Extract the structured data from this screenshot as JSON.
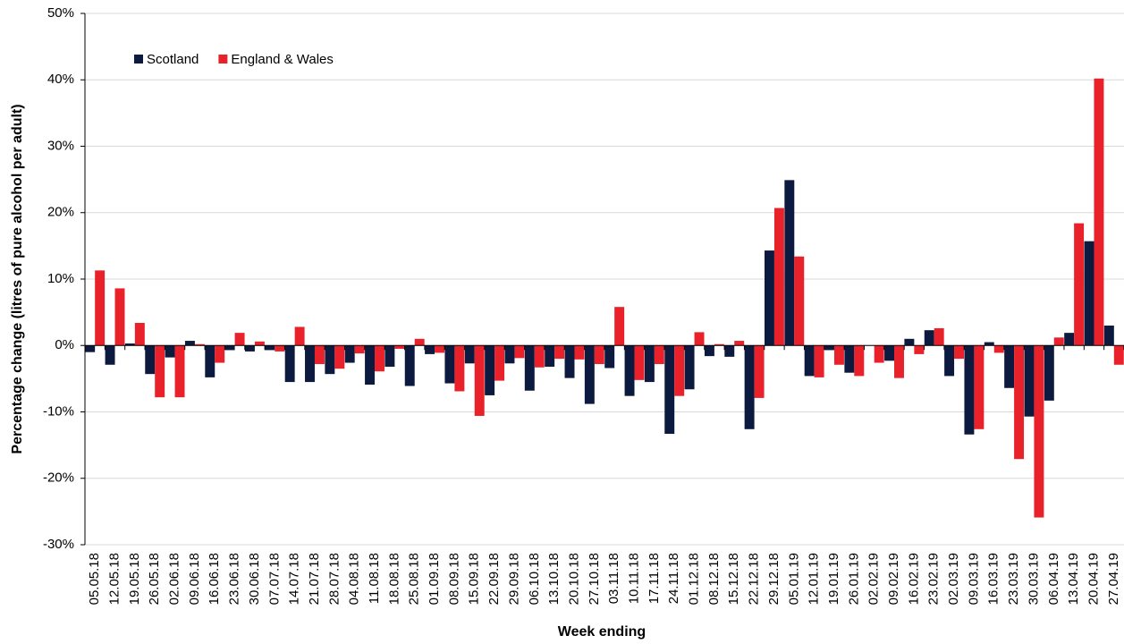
{
  "chart_data": {
    "type": "bar",
    "categories": [
      "05.05.18",
      "12.05.18",
      "19.05.18",
      "26.05.18",
      "02.06.18",
      "09.06.18",
      "16.06.18",
      "23.06.18",
      "30.06.18",
      "07.07.18",
      "14.07.18",
      "21.07.18",
      "28.07.18",
      "04.08.18",
      "11.08.18",
      "18.08.18",
      "25.08.18",
      "01.09.18",
      "08.09.18",
      "15.09.18",
      "22.09.18",
      "29.09.18",
      "06.10.18",
      "13.10.18",
      "20.10.18",
      "27.10.18",
      "03.11.18",
      "10.11.18",
      "17.11.18",
      "24.11.18",
      "01.12.18",
      "08.12.18",
      "15.12.18",
      "22.12.18",
      "29.12.18",
      "05.01.19",
      "12.01.19",
      "19.01.19",
      "26.01.19",
      "02.02.19",
      "09.02.19",
      "16.02.19",
      "23.02.19",
      "02.03.19",
      "09.03.19",
      "16.03.19",
      "23.03.19",
      "30.03.19",
      "06.04.19",
      "13.04.19",
      "20.04.19",
      "27.04.19"
    ],
    "series": [
      {
        "name": "Scotland",
        "color": "#0d1a3f",
        "values": [
          -1,
          -2.9,
          0.3,
          -4.3,
          -1.8,
          0.7,
          -4.8,
          -0.7,
          -0.9,
          -0.7,
          -5.5,
          -5.5,
          -4.3,
          -2.6,
          -5.9,
          -3.2,
          -6.1,
          -1.3,
          -5.7,
          -2.7,
          -7.5,
          -2.7,
          -6.8,
          -3.2,
          -4.9,
          -8.8,
          -3.4,
          -7.6,
          -5.5,
          -13.3,
          -6.6,
          -1.6,
          -1.7,
          -12.6,
          14.3,
          24.9,
          -4.6,
          -0.7,
          -4.1,
          0,
          -2.3,
          1,
          2.3,
          -4.6,
          -13.4,
          0.5,
          -6.4,
          -10.7,
          -8.3,
          1.9,
          15.7,
          3
        ]
      },
      {
        "name": "England & Wales",
        "color": "#e8212a",
        "values": [
          11.3,
          8.6,
          3.4,
          -7.8,
          -7.8,
          0.2,
          -2.6,
          1.9,
          0.6,
          -0.9,
          2.8,
          -2.8,
          -3.5,
          -1.2,
          -3.9,
          -0.5,
          1,
          -1.1,
          -6.9,
          -10.6,
          -5.3,
          -1.9,
          -3.3,
          -2,
          -2.1,
          -2.8,
          5.8,
          -5.2,
          -2.8,
          -7.6,
          2,
          0.2,
          0.7,
          -7.9,
          20.7,
          13.4,
          -4.8,
          -2.9,
          -4.6,
          -2.6,
          -4.9,
          -1.3,
          2.6,
          -2,
          -12.6,
          -1.1,
          -17.1,
          -25.9,
          1.2,
          18.4,
          40.2,
          -2.9
        ]
      }
    ],
    "x_label": "Week ending",
    "y_label": "Percentage change (litres of pure alcohol per adult)",
    "ylim": [
      -30,
      50
    ],
    "yticks": [
      {
        "value": -30,
        "label": "-30%"
      },
      {
        "value": -20,
        "label": "-20%"
      },
      {
        "value": -10,
        "label": "-10%"
      },
      {
        "value": 0,
        "label": "0%"
      },
      {
        "value": 10,
        "label": "10%"
      },
      {
        "value": 20,
        "label": "20%"
      },
      {
        "value": 30,
        "label": "30%"
      },
      {
        "value": 40,
        "label": "40%"
      },
      {
        "value": 50,
        "label": "50%"
      }
    ],
    "grid": true,
    "legend": "upper-left"
  }
}
